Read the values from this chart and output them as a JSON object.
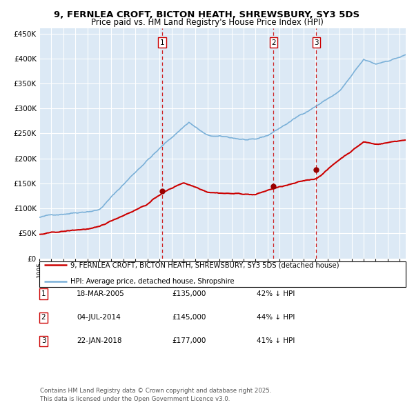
{
  "title": "9, FERNLEA CROFT, BICTON HEATH, SHREWSBURY, SY3 5DS",
  "subtitle": "Price paid vs. HM Land Registry's House Price Index (HPI)",
  "bg_color": "#dce9f5",
  "grid_color": "#ffffff",
  "hpi_color": "#7ab0d8",
  "price_color": "#cc0000",
  "marker_color": "#990000",
  "vline_color": "#cc0000",
  "ylim": [
    0,
    460000
  ],
  "yticks": [
    0,
    50000,
    100000,
    150000,
    200000,
    250000,
    300000,
    350000,
    400000,
    450000
  ],
  "xlim_start": 1995.0,
  "xlim_end": 2025.5,
  "transactions": [
    {
      "num": 1,
      "date": "18-MAR-2005",
      "year": 2005.21,
      "price": 135000,
      "pct": "42% ↓ HPI"
    },
    {
      "num": 2,
      "date": "04-JUL-2014",
      "year": 2014.5,
      "price": 145000,
      "pct": "44% ↓ HPI"
    },
    {
      "num": 3,
      "date": "22-JAN-2018",
      "year": 2018.06,
      "price": 177000,
      "pct": "41% ↓ HPI"
    }
  ],
  "legend_entries": [
    {
      "label": "9, FERNLEA CROFT, BICTON HEATH, SHREWSBURY, SY3 5DS (detached house)",
      "color": "#cc0000"
    },
    {
      "label": "HPI: Average price, detached house, Shropshire",
      "color": "#7ab0d8"
    }
  ],
  "footnote": "Contains HM Land Registry data © Crown copyright and database right 2025.\nThis data is licensed under the Open Government Licence v3.0."
}
